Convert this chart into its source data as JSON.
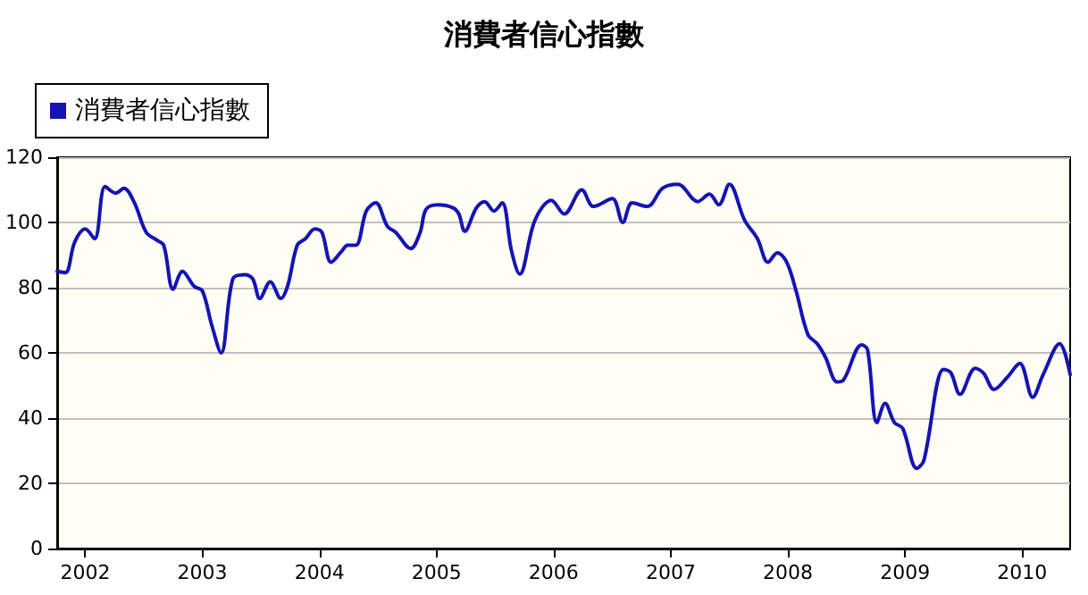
{
  "chart_data": {
    "type": "line",
    "title": "消費者信心指數",
    "legend": "top left",
    "grid": "y",
    "marker": "none",
    "line_style": "solid",
    "xlim": [
      2001.76,
      2010.41
    ],
    "xticks": [
      2002,
      2003,
      2004,
      2005,
      2006,
      2007,
      2008,
      2009,
      2010
    ],
    "ylim": [
      0,
      120
    ],
    "yticks": [
      0,
      20,
      40,
      60,
      80,
      100,
      120
    ],
    "series": [
      {
        "name": "消費者信心指數",
        "color": "#1414b4",
        "x": [
          2001.76,
          2001.83,
          2001.91,
          2002.0,
          2002.08,
          2002.17,
          2002.26,
          2002.33,
          2002.42,
          2002.52,
          2002.61,
          2002.67,
          2002.75,
          2002.83,
          2002.93,
          2003.0,
          2003.08,
          2003.16,
          2003.26,
          2003.36,
          2003.43,
          2003.49,
          2003.58,
          2003.67,
          2003.73,
          2003.81,
          2003.88,
          2003.96,
          2004.02,
          2004.1,
          2004.19,
          2004.24,
          2004.31,
          2004.4,
          2004.48,
          2004.58,
          2004.65,
          2004.78,
          2004.86,
          2004.91,
          2005.01,
          2005.14,
          2005.19,
          2005.24,
          2005.34,
          2005.41,
          2005.49,
          2005.56,
          2005.64,
          2005.71,
          2005.84,
          2005.98,
          2006.09,
          2006.24,
          2006.34,
          2006.5,
          2006.59,
          2006.67,
          2006.8,
          2006.93,
          2007.06,
          2007.23,
          2007.33,
          2007.41,
          2007.5,
          2007.63,
          2007.74,
          2007.83,
          2007.91,
          2007.99,
          2008.07,
          2008.17,
          2008.25,
          2008.32,
          2008.42,
          2008.47,
          2008.63,
          2008.68,
          2008.76,
          2008.83,
          2008.91,
          2008.98,
          2009.1,
          2009.16,
          2009.33,
          2009.39,
          2009.47,
          2009.6,
          2009.67,
          2009.76,
          2009.87,
          2009.98,
          2010.09,
          2010.18,
          2010.32,
          2010.41
        ],
        "values": [
          85,
          84.6,
          94,
          98,
          95,
          111,
          109,
          110.5,
          106,
          97,
          94.6,
          93,
          79.5,
          85,
          80.4,
          79,
          68.5,
          60,
          82.7,
          84,
          82.7,
          76.7,
          81.8,
          76.7,
          80.8,
          93,
          95,
          98,
          97,
          87.8,
          91.2,
          93,
          93,
          103.5,
          106,
          98.8,
          97,
          92,
          97,
          104,
          105.4,
          104.5,
          102.6,
          97.3,
          104.5,
          106.4,
          103.5,
          106,
          91.2,
          84.2,
          100.7,
          106.8,
          102.6,
          110,
          104.9,
          107.3,
          100,
          106,
          104.9,
          110.5,
          111.7,
          106.4,
          108.7,
          105.4,
          111.7,
          100.7,
          95,
          87.8,
          90.7,
          87.8,
          79,
          65.7,
          62.8,
          58.7,
          51.1,
          51.5,
          62.5,
          61,
          38.6,
          44.5,
          38.6,
          36.9,
          24.6,
          26.9,
          54.9,
          54,
          47.3,
          55.3,
          53.8,
          48.8,
          52.4,
          56.8,
          46.4,
          53.4,
          62.8,
          53.4
        ]
      }
    ]
  }
}
